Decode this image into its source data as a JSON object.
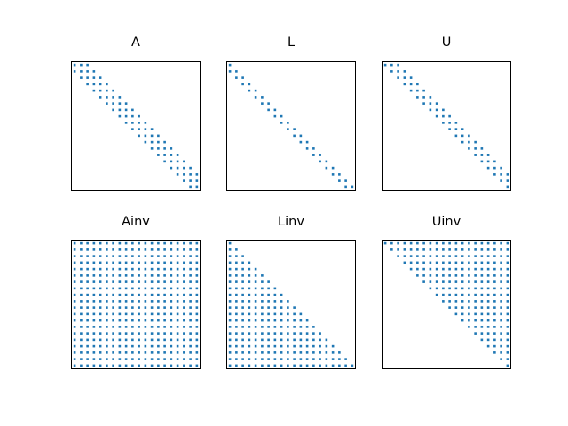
{
  "chart_data": [
    {
      "type": "scatter",
      "title": "A",
      "n": 20,
      "pattern": "banded",
      "band": {
        "lower": 1,
        "upper": 2
      },
      "color": "#1f77b4"
    },
    {
      "type": "scatter",
      "title": "L",
      "n": 20,
      "pattern": "lower-banded",
      "band": {
        "lower": 1
      },
      "color": "#1f77b4"
    },
    {
      "type": "scatter",
      "title": "U",
      "n": 20,
      "pattern": "upper-banded",
      "band": {
        "upper": 2
      },
      "color": "#1f77b4"
    },
    {
      "type": "scatter",
      "title": "Ainv",
      "n": 20,
      "pattern": "dense",
      "color": "#1f77b4"
    },
    {
      "type": "scatter",
      "title": "Linv",
      "n": 20,
      "pattern": "lower-triangular",
      "color": "#1f77b4"
    },
    {
      "type": "scatter",
      "title": "Uinv",
      "n": 20,
      "pattern": "upper-triangular",
      "color": "#1f77b4"
    }
  ]
}
